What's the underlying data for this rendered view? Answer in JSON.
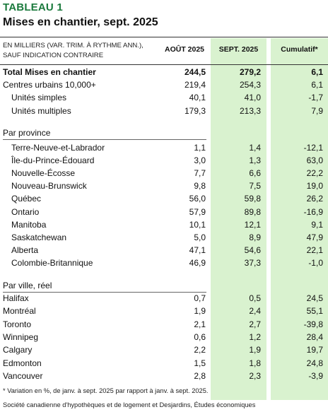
{
  "title": "TABLEAU 1",
  "subtitle": "Mises en chantier, sept. 2025",
  "units_note_line1": "EN MILLIERS (VAR. TRIM. À RYTHME ANN.),",
  "units_note_line2": "SAUF INDICATION CONTRAIRE",
  "columns": [
    "AOÛT 2025",
    "SEPT. 2025",
    "Cumulatif*"
  ],
  "top_rows": [
    {
      "label": "Total Mises en chantier",
      "values": [
        "244,5",
        "279,2",
        "6,1"
      ],
      "bold": true,
      "indent": 0
    },
    {
      "label": "Centres urbains 10,000+",
      "values": [
        "219,4",
        "254,3",
        "6,1"
      ],
      "bold": false,
      "indent": 0
    },
    {
      "label": "Unités simples",
      "values": [
        "40,1",
        "41,0",
        "-1,7"
      ],
      "bold": false,
      "indent": 1
    },
    {
      "label": "Unités multiples",
      "values": [
        "179,3",
        "213,3",
        "7,9"
      ],
      "bold": false,
      "indent": 1
    }
  ],
  "province_section": "Par province",
  "province_rows": [
    {
      "label": "Terre-Neuve-et-Labrador",
      "values": [
        "1,1",
        "1,4",
        "-12,1"
      ]
    },
    {
      "label": "Île-du-Prince-Édouard",
      "values": [
        "3,0",
        "1,3",
        "63,0"
      ]
    },
    {
      "label": "Nouvelle-Écosse",
      "values": [
        "7,7",
        "6,6",
        "22,2"
      ]
    },
    {
      "label": "Nouveau-Brunswick",
      "values": [
        "9,8",
        "7,5",
        "19,0"
      ]
    },
    {
      "label": "Québec",
      "values": [
        "56,0",
        "59,8",
        "26,2"
      ]
    },
    {
      "label": "Ontario",
      "values": [
        "57,9",
        "89,8",
        "-16,9"
      ]
    },
    {
      "label": "Manitoba",
      "values": [
        "10,1",
        "12,1",
        "9,1"
      ]
    },
    {
      "label": "Saskatchewan",
      "values": [
        "5,0",
        "8,9",
        "47,9"
      ]
    },
    {
      "label": "Alberta",
      "values": [
        "47,1",
        "54,6",
        "22,1"
      ]
    },
    {
      "label": "Colombie-Britannique",
      "values": [
        "46,9",
        "37,3",
        "-1,0"
      ]
    }
  ],
  "city_section": "Par ville, réel",
  "city_rows": [
    {
      "label": "Halifax",
      "values": [
        "0,7",
        "0,5",
        "24,5"
      ]
    },
    {
      "label": "Montréal",
      "values": [
        "1,9",
        "2,4",
        "55,1"
      ]
    },
    {
      "label": "Toronto",
      "values": [
        "2,1",
        "2,7",
        "-39,8"
      ]
    },
    {
      "label": "Winnipeg",
      "values": [
        "0,6",
        "1,2",
        "28,4"
      ]
    },
    {
      "label": "Calgary",
      "values": [
        "2,2",
        "1,9",
        "19,7"
      ]
    },
    {
      "label": "Edmonton",
      "values": [
        "1,5",
        "1,8",
        "24,8"
      ]
    },
    {
      "label": "Vancouver",
      "values": [
        "2,8",
        "2,3",
        "-3,9"
      ]
    }
  ],
  "footnote": "* Variation en %, de janv. à sept. 2025 par rapport à janv. à sept. 2025.",
  "source": "Société canadienne d'hypothèques et de logement et Desjardins, Études économiques",
  "colors": {
    "accent_green": "#1b7a3d",
    "shade_green": "#d9f2cf"
  }
}
